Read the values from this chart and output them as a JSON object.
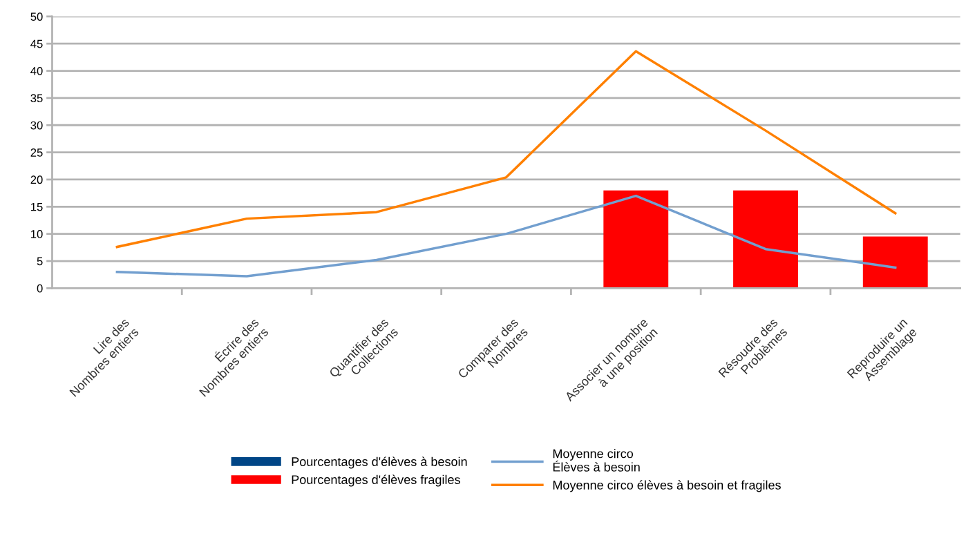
{
  "chart_data": {
    "type": "bar",
    "categories": [
      "Lire des\nNombres entiers",
      "Écrire des\nNombres entiers",
      "Quantifier des\nCollections",
      "Comparer des\nNombres",
      "Associer un nombre\nà une position",
      "Résoudre des\nProblèmes",
      "Reproduire un\nAssemblage"
    ],
    "series": [
      {
        "name": "Pourcentages d'élèves à besoin",
        "color": "#004586",
        "values": [
          null,
          null,
          null,
          null,
          null,
          null,
          null
        ]
      },
      {
        "name": "Pourcentages d'élèves fragiles",
        "color": "#ff0000",
        "values": [
          0,
          0,
          0,
          0,
          18,
          18,
          9.5
        ]
      },
      {
        "name": "Moyenne circo\nÉlèves à besoin",
        "type": "line",
        "color": "#729fcf",
        "values": [
          3,
          2.2,
          5.2,
          10,
          17,
          7.2,
          3.8
        ]
      },
      {
        "name": "Moyenne circo élèves à besoin et fragiles",
        "type": "line",
        "color": "#ff8000",
        "values": [
          7.6,
          12.8,
          14,
          20.4,
          43.6,
          29,
          13.8
        ]
      }
    ],
    "ylim": [
      0,
      50
    ],
    "yticks": [
      0,
      5,
      10,
      15,
      20,
      25,
      30,
      35,
      40,
      45,
      50
    ],
    "grid": "y",
    "legend": "bottom",
    "marker": "none",
    "line_style": "solid"
  }
}
